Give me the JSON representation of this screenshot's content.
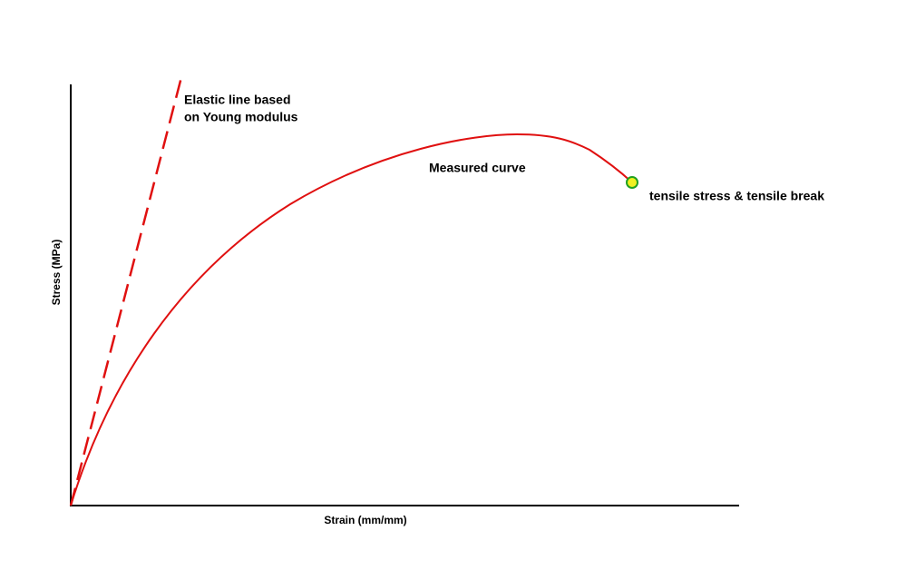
{
  "axes": {
    "x_label": "Strain (mm/mm)",
    "y_label": "Stress (MPa)"
  },
  "annotations": {
    "elastic_line": [
      "Elastic line based",
      "on Young modulus"
    ],
    "measured_curve": "Measured curve",
    "break_point": "tensile stress & tensile break"
  }
}
